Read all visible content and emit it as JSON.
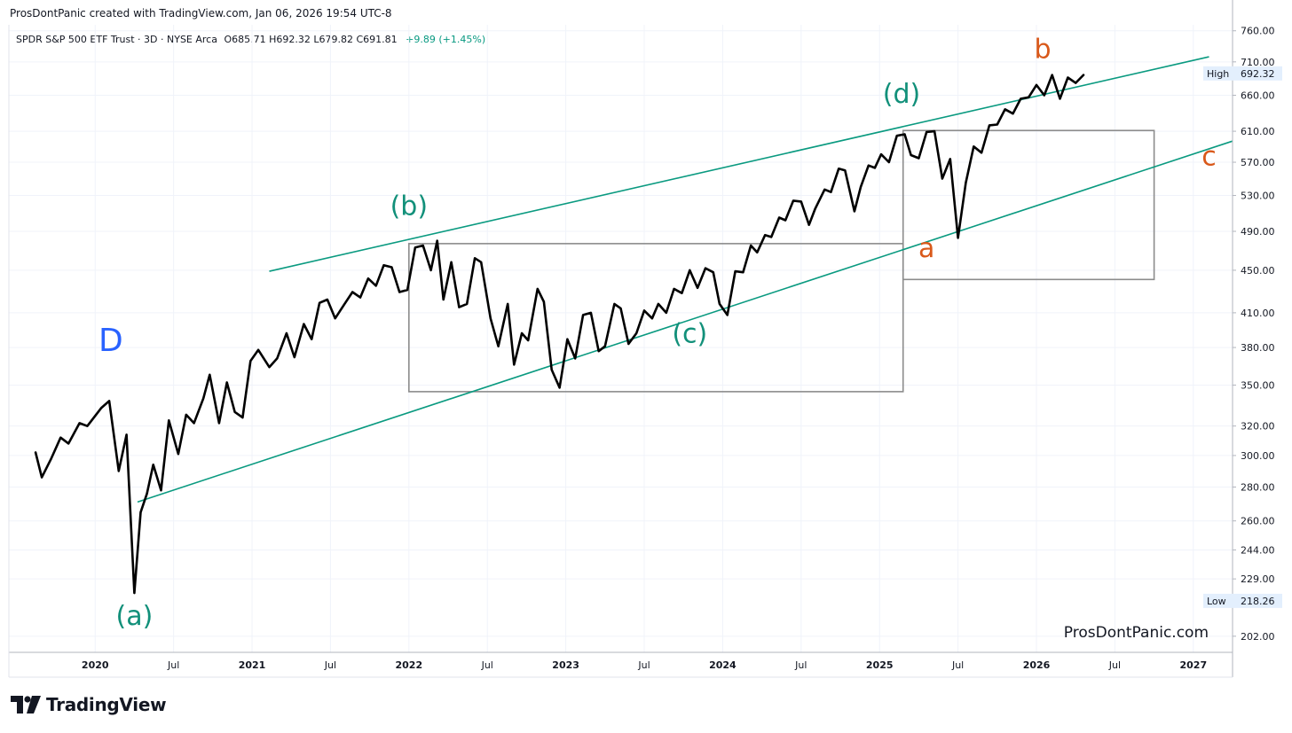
{
  "header": {
    "attribution": "ProsDontPanic created with TradingView.com, Jan 06, 2026 19:54 UTC-8"
  },
  "symbol": {
    "name_line": "SPDR S&P 500 ETF Trust · 3D · NYSE Arca",
    "ohlc": "O685.71 H692.32 L679.82 C691.81",
    "change": "+9.89 (+1.45%)"
  },
  "watermark": "ProsDontPanic.com",
  "footer": {
    "brand": "TradingView",
    "brand_color": "#131722"
  },
  "colors": {
    "price_line": "#000000",
    "channel": "#0a9a80",
    "box": "#8c8c8c",
    "label_green": "#12907a",
    "label_orange": "#d9591a",
    "label_blue": "#2962ff"
  },
  "chart_data": {
    "type": "line",
    "title": "SPDR S&P 500 ETF Trust · 3D · NYSE Arca",
    "xlabel": "",
    "ylabel": "",
    "scale": "log",
    "ylim": [
      195,
      770
    ],
    "xlim": [
      2019.45,
      2027.25
    ],
    "y_ticks": [
      760,
      710,
      660,
      610,
      570,
      530,
      490,
      450,
      410,
      380,
      350,
      320,
      300,
      280,
      260,
      244,
      229,
      202
    ],
    "x_ticks": [
      {
        "label": "2020",
        "x": 2020.0,
        "bold": true
      },
      {
        "label": "Jul",
        "x": 2020.5,
        "bold": false
      },
      {
        "label": "2021",
        "x": 2021.0,
        "bold": true
      },
      {
        "label": "Jul",
        "x": 2021.5,
        "bold": false
      },
      {
        "label": "2022",
        "x": 2022.0,
        "bold": true
      },
      {
        "label": "Jul",
        "x": 2022.5,
        "bold": false
      },
      {
        "label": "2023",
        "x": 2023.0,
        "bold": true
      },
      {
        "label": "Jul",
        "x": 2023.5,
        "bold": false
      },
      {
        "label": "2024",
        "x": 2024.0,
        "bold": true
      },
      {
        "label": "Jul",
        "x": 2024.5,
        "bold": false
      },
      {
        "label": "2025",
        "x": 2025.0,
        "bold": true
      },
      {
        "label": "Jul",
        "x": 2025.5,
        "bold": false
      },
      {
        "label": "2026",
        "x": 2026.0,
        "bold": true
      },
      {
        "label": "Jul",
        "x": 2026.5,
        "bold": false
      },
      {
        "label": "2027",
        "x": 2027.0,
        "bold": true
      }
    ],
    "price_labels": [
      {
        "label": "High",
        "value": "692.32",
        "y": 692.32
      },
      {
        "label": "Low",
        "value": "218.26",
        "y": 218.26
      }
    ],
    "series": [
      {
        "name": "SPY",
        "points": [
          [
            2019.62,
            302
          ],
          [
            2019.66,
            286
          ],
          [
            2019.72,
            298
          ],
          [
            2019.78,
            312
          ],
          [
            2019.83,
            308
          ],
          [
            2019.9,
            322
          ],
          [
            2019.95,
            320
          ],
          [
            2020.04,
            333
          ],
          [
            2020.09,
            338
          ],
          [
            2020.15,
            290
          ],
          [
            2020.2,
            314
          ],
          [
            2020.25,
            222
          ],
          [
            2020.29,
            265
          ],
          [
            2020.33,
            276
          ],
          [
            2020.37,
            294
          ],
          [
            2020.42,
            278
          ],
          [
            2020.47,
            324
          ],
          [
            2020.53,
            301
          ],
          [
            2020.58,
            328
          ],
          [
            2020.63,
            322
          ],
          [
            2020.69,
            340
          ],
          [
            2020.73,
            358
          ],
          [
            2020.79,
            322
          ],
          [
            2020.84,
            352
          ],
          [
            2020.89,
            330
          ],
          [
            2020.94,
            326
          ],
          [
            2020.99,
            369
          ],
          [
            2021.04,
            378
          ],
          [
            2021.11,
            364
          ],
          [
            2021.16,
            371
          ],
          [
            2021.22,
            392
          ],
          [
            2021.27,
            372
          ],
          [
            2021.33,
            400
          ],
          [
            2021.38,
            387
          ],
          [
            2021.43,
            419
          ],
          [
            2021.48,
            422
          ],
          [
            2021.53,
            405
          ],
          [
            2021.59,
            418
          ],
          [
            2021.64,
            429
          ],
          [
            2021.69,
            424
          ],
          [
            2021.74,
            442
          ],
          [
            2021.79,
            435
          ],
          [
            2021.84,
            455
          ],
          [
            2021.89,
            453
          ],
          [
            2021.94,
            429
          ],
          [
            2021.99,
            431
          ],
          [
            2022.04,
            473
          ],
          [
            2022.09,
            475
          ],
          [
            2022.14,
            450
          ],
          [
            2022.18,
            480
          ],
          [
            2022.22,
            422
          ],
          [
            2022.27,
            458
          ],
          [
            2022.32,
            415
          ],
          [
            2022.37,
            418
          ],
          [
            2022.42,
            462
          ],
          [
            2022.46,
            458
          ],
          [
            2022.52,
            405
          ],
          [
            2022.57,
            381
          ],
          [
            2022.63,
            418
          ],
          [
            2022.67,
            366
          ],
          [
            2022.72,
            392
          ],
          [
            2022.76,
            386
          ],
          [
            2022.82,
            432
          ],
          [
            2022.86,
            420
          ],
          [
            2022.91,
            362
          ],
          [
            2022.96,
            348
          ],
          [
            2023.01,
            387
          ],
          [
            2023.06,
            371
          ],
          [
            2023.11,
            408
          ],
          [
            2023.16,
            410
          ],
          [
            2023.21,
            377
          ],
          [
            2023.25,
            381
          ],
          [
            2023.31,
            418
          ],
          [
            2023.35,
            414
          ],
          [
            2023.4,
            383
          ],
          [
            2023.45,
            392
          ],
          [
            2023.5,
            412
          ],
          [
            2023.55,
            405
          ],
          [
            2023.59,
            418
          ],
          [
            2023.64,
            410
          ],
          [
            2023.69,
            432
          ],
          [
            2023.74,
            428
          ],
          [
            2023.79,
            450
          ],
          [
            2023.84,
            433
          ],
          [
            2023.89,
            452
          ],
          [
            2023.94,
            448
          ],
          [
            2023.98,
            418
          ],
          [
            2024.03,
            408
          ],
          [
            2024.08,
            449
          ],
          [
            2024.13,
            448
          ],
          [
            2024.18,
            475
          ],
          [
            2024.22,
            468
          ],
          [
            2024.27,
            486
          ],
          [
            2024.31,
            484
          ],
          [
            2024.36,
            505
          ],
          [
            2024.4,
            502
          ],
          [
            2024.45,
            524
          ],
          [
            2024.5,
            523
          ],
          [
            2024.55,
            497
          ],
          [
            2024.59,
            515
          ],
          [
            2024.65,
            537
          ],
          [
            2024.69,
            534
          ],
          [
            2024.74,
            562
          ],
          [
            2024.78,
            560
          ],
          [
            2024.84,
            512
          ],
          [
            2024.88,
            540
          ],
          [
            2024.93,
            566
          ],
          [
            2024.97,
            563
          ],
          [
            2025.01,
            580
          ],
          [
            2025.06,
            570
          ],
          [
            2025.11,
            604
          ],
          [
            2025.16,
            606
          ],
          [
            2025.2,
            579
          ],
          [
            2025.25,
            575
          ],
          [
            2025.3,
            609
          ],
          [
            2025.35,
            610
          ],
          [
            2025.4,
            550
          ],
          [
            2025.45,
            574
          ],
          [
            2025.5,
            483
          ],
          [
            2025.55,
            545
          ],
          [
            2025.6,
            590
          ],
          [
            2025.65,
            582
          ],
          [
            2025.7,
            618
          ],
          [
            2025.75,
            619
          ],
          [
            2025.8,
            640
          ],
          [
            2025.85,
            634
          ],
          [
            2025.9,
            655
          ],
          [
            2025.95,
            657
          ],
          [
            2026.0,
            675
          ],
          [
            2026.05,
            660
          ],
          [
            2026.1,
            690
          ],
          [
            2026.15,
            655
          ],
          [
            2026.2,
            686
          ],
          [
            2026.25,
            678
          ],
          [
            2026.3,
            690
          ]
        ]
      }
    ],
    "channel_lines": [
      {
        "name": "upper-channel",
        "from": [
          2021.11,
          449
        ],
        "to": [
          2027.1,
          718
        ]
      },
      {
        "name": "lower-channel",
        "from": [
          2020.27,
          271
        ],
        "to": [
          2027.25,
          597
        ]
      }
    ],
    "boxes": [
      {
        "name": "consolidation-box-1",
        "x1": 2022.0,
        "x2": 2025.15,
        "y_top": 477,
        "y_bottom": 345
      },
      {
        "name": "consolidation-box-2",
        "x1": 2025.15,
        "x2": 2026.75,
        "y_top": 611,
        "y_bottom": 441
      }
    ],
    "annotations": [
      {
        "name": "wave-D-label",
        "text": "D",
        "x": 2020.1,
        "y": 377,
        "color": "blue"
      },
      {
        "name": "wave-a-paren-label",
        "text": "(a)",
        "x": 2020.25,
        "y": 207,
        "color": "green"
      },
      {
        "name": "wave-b-paren-label",
        "text": "(b)",
        "x": 2022.0,
        "y": 508,
        "color": "green"
      },
      {
        "name": "wave-c-paren-label",
        "text": "(c)",
        "x": 2023.79,
        "y": 384,
        "color": "green"
      },
      {
        "name": "wave-d-paren-label",
        "text": "(d)",
        "x": 2025.14,
        "y": 649,
        "color": "green"
      },
      {
        "name": "wave-a-label",
        "text": "a",
        "x": 2025.3,
        "y": 463,
        "color": "orange"
      },
      {
        "name": "wave-b-label",
        "text": "b",
        "x": 2026.04,
        "y": 716,
        "color": "orange"
      },
      {
        "name": "wave-c-label",
        "text": "c",
        "x": 2027.1,
        "y": 566,
        "color": "orange"
      }
    ]
  }
}
